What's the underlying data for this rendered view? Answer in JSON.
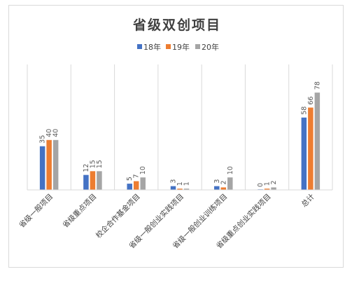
{
  "chart_data": {
    "type": "bar",
    "title": "省级双创项目",
    "categories": [
      "省级一般项目",
      "省级重点项目",
      "校企合作基金项目",
      "省级一般创业实践项目",
      "省级一般创业训练项目",
      "省级重点创业实践项目",
      "总计"
    ],
    "series": [
      {
        "name": "18年",
        "color": "#4472c4",
        "values": [
          35,
          12,
          5,
          3,
          3,
          0,
          58
        ]
      },
      {
        "name": "19年",
        "color": "#ed7d31",
        "values": [
          40,
          15,
          7,
          1,
          2,
          1,
          66
        ]
      },
      {
        "name": "20年",
        "color": "#a5a5a5",
        "values": [
          40,
          15,
          10,
          1,
          10,
          2,
          78
        ]
      }
    ],
    "ylim": [
      0,
      90
    ],
    "legend_position": "top",
    "data_labels": true,
    "grid": "vertical-category-separators"
  }
}
